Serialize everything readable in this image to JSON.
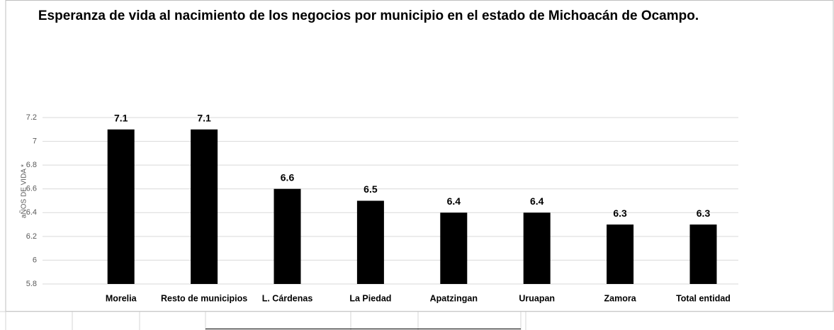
{
  "chart_data": {
    "type": "bar",
    "title": "Esperanza de vida al nacimiento de los negocios por municipio en el estado de Michoacán de Ocampo.",
    "y_axis_label": "aÑOS DE VIDA *",
    "categories": [
      "Morelia",
      "Resto de municipios",
      "L. Cárdenas",
      "La Piedad",
      "Apatzingan",
      "Uruapan",
      "Zamora",
      "Total entidad"
    ],
    "values": [
      7.1,
      7.1,
      6.6,
      6.5,
      6.4,
      6.4,
      6.3,
      6.3
    ],
    "color": "#000000",
    "ylim": [
      5.8,
      7.2
    ],
    "yticks": [
      5.8,
      6,
      6.2,
      6.4,
      6.6,
      6.8,
      7,
      7.2
    ],
    "grid": true
  }
}
